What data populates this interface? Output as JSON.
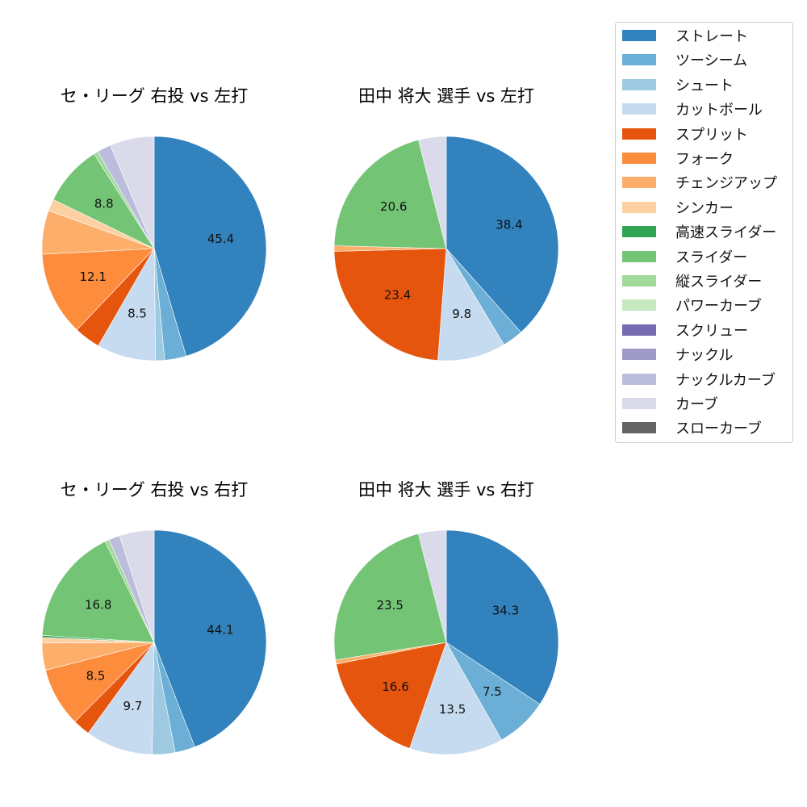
{
  "chart_data": [
    {
      "type": "pie",
      "title": "セ・リーグ 右投 vs 左打",
      "start_angle": 90,
      "direction": "clockwise",
      "labels_shown_threshold": 5,
      "slices": [
        {
          "name": "ストレート",
          "value": 45.4,
          "label": "45.4"
        },
        {
          "name": "ツーシーム",
          "value": 3.1
        },
        {
          "name": "シュート",
          "value": 1.3
        },
        {
          "name": "カットボール",
          "value": 8.5,
          "label": "8.5"
        },
        {
          "name": "スプリット",
          "value": 3.8
        },
        {
          "name": "フォーク",
          "value": 12.1,
          "label": "12.1"
        },
        {
          "name": "チェンジアップ",
          "value": 6.3
        },
        {
          "name": "シンカー",
          "value": 1.7
        },
        {
          "name": "スライダー",
          "value": 8.8,
          "label": "8.8"
        },
        {
          "name": "縦スライダー",
          "value": 0.6
        },
        {
          "name": "ナックルカーブ",
          "value": 2.0
        },
        {
          "name": "カーブ",
          "value": 6.4
        }
      ]
    },
    {
      "type": "pie",
      "title": "田中 将大 選手 vs 左打",
      "start_angle": 90,
      "direction": "clockwise",
      "slices": [
        {
          "name": "ストレート",
          "value": 38.4,
          "label": "38.4"
        },
        {
          "name": "ツーシーム",
          "value": 3.0
        },
        {
          "name": "カットボール",
          "value": 9.8,
          "label": "9.8"
        },
        {
          "name": "スプリット",
          "value": 23.4,
          "label": "23.4"
        },
        {
          "name": "チェンジアップ",
          "value": 0.8
        },
        {
          "name": "スライダー",
          "value": 20.6,
          "label": "20.6"
        },
        {
          "name": "カーブ",
          "value": 4.0
        }
      ]
    },
    {
      "type": "pie",
      "title": "セ・リーグ 右投 vs 右打",
      "start_angle": 90,
      "direction": "clockwise",
      "slices": [
        {
          "name": "ストレート",
          "value": 44.1,
          "label": "44.1"
        },
        {
          "name": "ツーシーム",
          "value": 2.9
        },
        {
          "name": "シュート",
          "value": 3.3
        },
        {
          "name": "カットボール",
          "value": 9.7,
          "label": "9.7"
        },
        {
          "name": "スプリット",
          "value": 2.5
        },
        {
          "name": "フォーク",
          "value": 8.5,
          "label": "8.5"
        },
        {
          "name": "チェンジアップ",
          "value": 3.9
        },
        {
          "name": "シンカー",
          "value": 0.8
        },
        {
          "name": "高速スライダー",
          "value": 0.3
        },
        {
          "name": "スライダー",
          "value": 16.8,
          "label": "16.8"
        },
        {
          "name": "縦スライダー",
          "value": 0.6
        },
        {
          "name": "ナックルカーブ",
          "value": 1.6
        },
        {
          "name": "カーブ",
          "value": 5.0
        }
      ]
    },
    {
      "type": "pie",
      "title": "田中 将大 選手 vs 右打",
      "start_angle": 90,
      "direction": "clockwise",
      "slices": [
        {
          "name": "ストレート",
          "value": 34.3,
          "label": "34.3"
        },
        {
          "name": "ツーシーム",
          "value": 7.5,
          "label": "7.5"
        },
        {
          "name": "カットボール",
          "value": 13.5,
          "label": "13.5"
        },
        {
          "name": "スプリット",
          "value": 16.6,
          "label": "16.6"
        },
        {
          "name": "チェンジアップ",
          "value": 0.6
        },
        {
          "name": "スライダー",
          "value": 23.5,
          "label": "23.5"
        },
        {
          "name": "カーブ",
          "value": 4.0
        }
      ]
    }
  ],
  "legend": {
    "items": [
      {
        "name": "ストレート",
        "color": "#3182bd"
      },
      {
        "name": "ツーシーム",
        "color": "#6baed6"
      },
      {
        "name": "シュート",
        "color": "#9ecae1"
      },
      {
        "name": "カットボール",
        "color": "#c6dbef"
      },
      {
        "name": "スプリット",
        "color": "#e6550d"
      },
      {
        "name": "フォーク",
        "color": "#fd8d3c"
      },
      {
        "name": "チェンジアップ",
        "color": "#fdae6b"
      },
      {
        "name": "シンカー",
        "color": "#fdd0a2"
      },
      {
        "name": "高速スライダー",
        "color": "#31a354"
      },
      {
        "name": "スライダー",
        "color": "#74c476"
      },
      {
        "name": "縦スライダー",
        "color": "#a1d99b"
      },
      {
        "name": "パワーカーブ",
        "color": "#c7e9c0"
      },
      {
        "name": "スクリュー",
        "color": "#756bb1"
      },
      {
        "name": "ナックル",
        "color": "#9e9ac8"
      },
      {
        "name": "ナックルカーブ",
        "color": "#bcbddc"
      },
      {
        "name": "カーブ",
        "color": "#dadaeb"
      },
      {
        "name": "スローカーブ",
        "color": "#636363"
      }
    ]
  }
}
